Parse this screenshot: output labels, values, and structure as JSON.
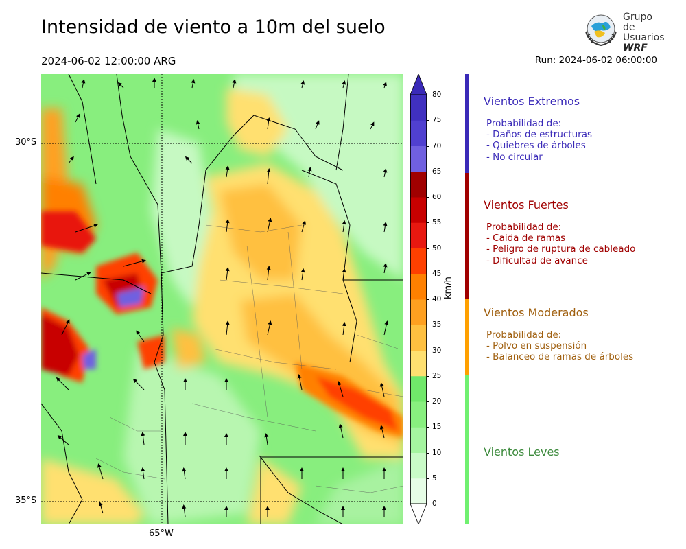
{
  "header": {
    "title": "Intensidad de viento a 10m del suelo",
    "datetime": "2024-06-02 12:00:00 ARG",
    "run": "Run: 2024-06-02 06:00:00"
  },
  "logo": {
    "line1": "Grupo de",
    "line2": "Usuarios",
    "line3": "WRF"
  },
  "map": {
    "lat_labels": [
      "30°S",
      "35°S"
    ],
    "lon_labels": [
      "65°W"
    ]
  },
  "colorbar": {
    "unit": "km/h",
    "ticks": [
      "0",
      "5",
      "10",
      "15",
      "20",
      "25",
      "30",
      "35",
      "40",
      "45",
      "50",
      "55",
      "60",
      "65",
      "70",
      "75",
      "80"
    ],
    "colors": [
      "#e6fde6",
      "#c9fbc7",
      "#a5f5a0",
      "#88f07f",
      "#70e86a",
      "#ffe070",
      "#ffc040",
      "#ffa020",
      "#ff8000",
      "#ff4000",
      "#e81810",
      "#c80000",
      "#a00000",
      "#7060e0",
      "#5040d0",
      "#4030c0"
    ],
    "extend_top": "#3a2ab8",
    "extend_bottom": "#ffffff"
  },
  "legend": [
    {
      "name": "Vientos Extremos",
      "color": "#3a2ab8",
      "lines": [
        "Probabilidad de:",
        "- Daños de estructuras",
        "- Quiebres de árboles",
        "- No circular"
      ]
    },
    {
      "name": "Vientos Fuertes",
      "color": "#a00000",
      "lines": [
        "Probabilidad de:",
        "- Caida de ramas",
        "- Peligro de ruptura de cableado",
        "- Dificultad de avance"
      ]
    },
    {
      "name": "Vientos Moderados",
      "color": "#a06010",
      "lines": [
        "Probabilidad de:",
        "- Polvo en suspensión",
        "- Balanceo de ramas de árboles"
      ]
    },
    {
      "name": "Vientos Leves",
      "color": "#3c8a3c",
      "lines": []
    }
  ],
  "legend_bar_colors": [
    "#3a2ab8",
    "#a00000",
    "#ffa000",
    "#70f070"
  ]
}
